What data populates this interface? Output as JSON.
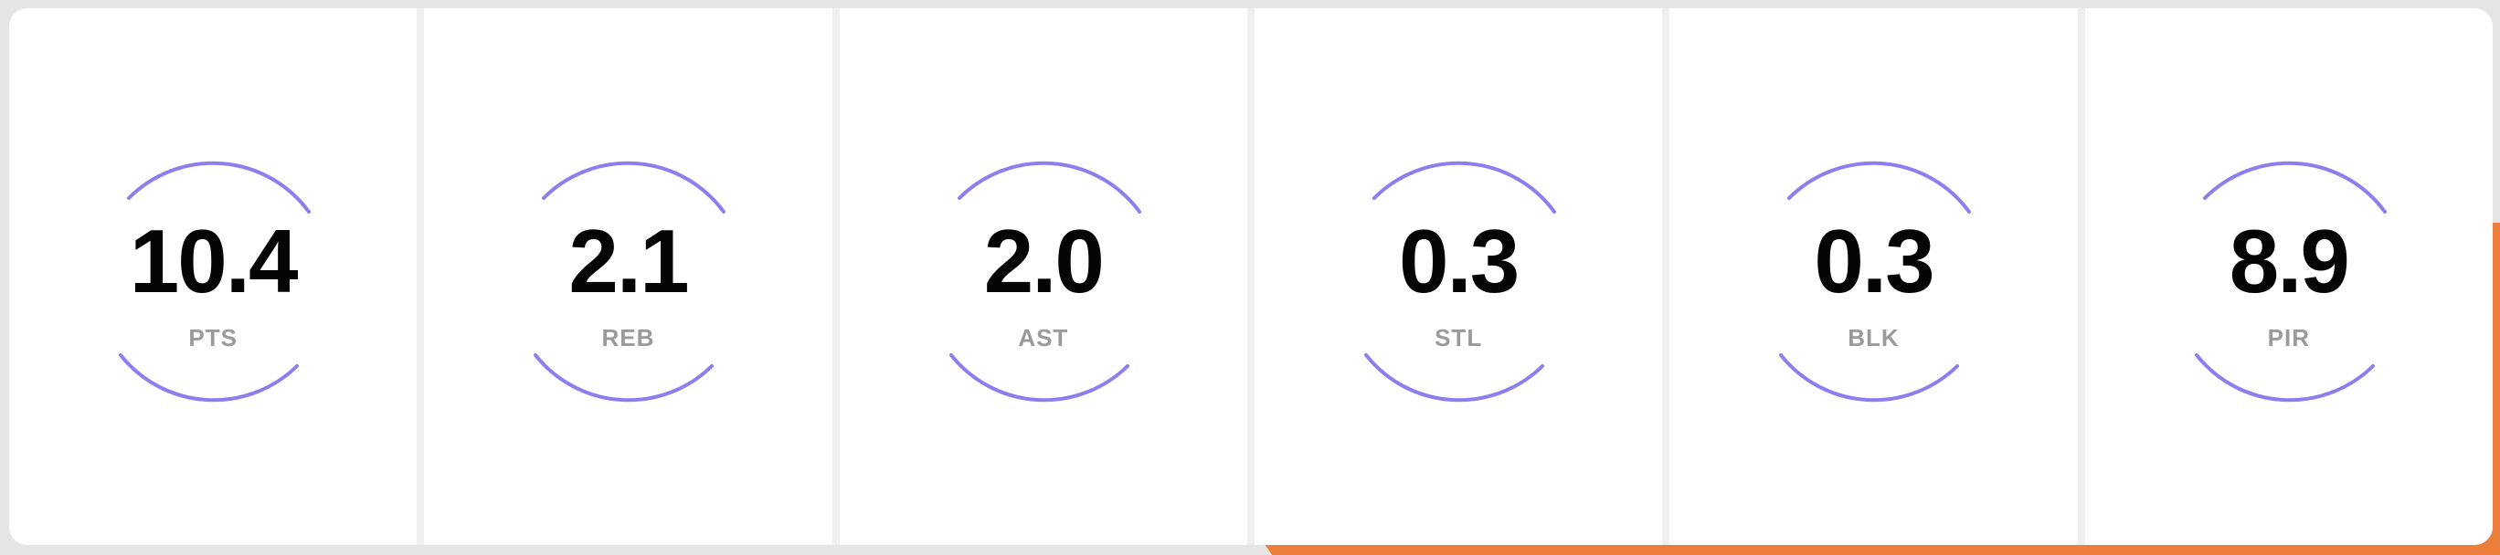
{
  "colors": {
    "arc": "#8b7ff0",
    "accent": "#ec7e3c",
    "value": "#050505",
    "label": "#9a9a9a"
  },
  "stats": [
    {
      "value": "10.4",
      "label": "PTS"
    },
    {
      "value": "2.1",
      "label": "REB"
    },
    {
      "value": "2.0",
      "label": "AST"
    },
    {
      "value": "0.3",
      "label": "STL"
    },
    {
      "value": "0.3",
      "label": "BLK"
    },
    {
      "value": "8.9",
      "label": "PIR"
    }
  ]
}
